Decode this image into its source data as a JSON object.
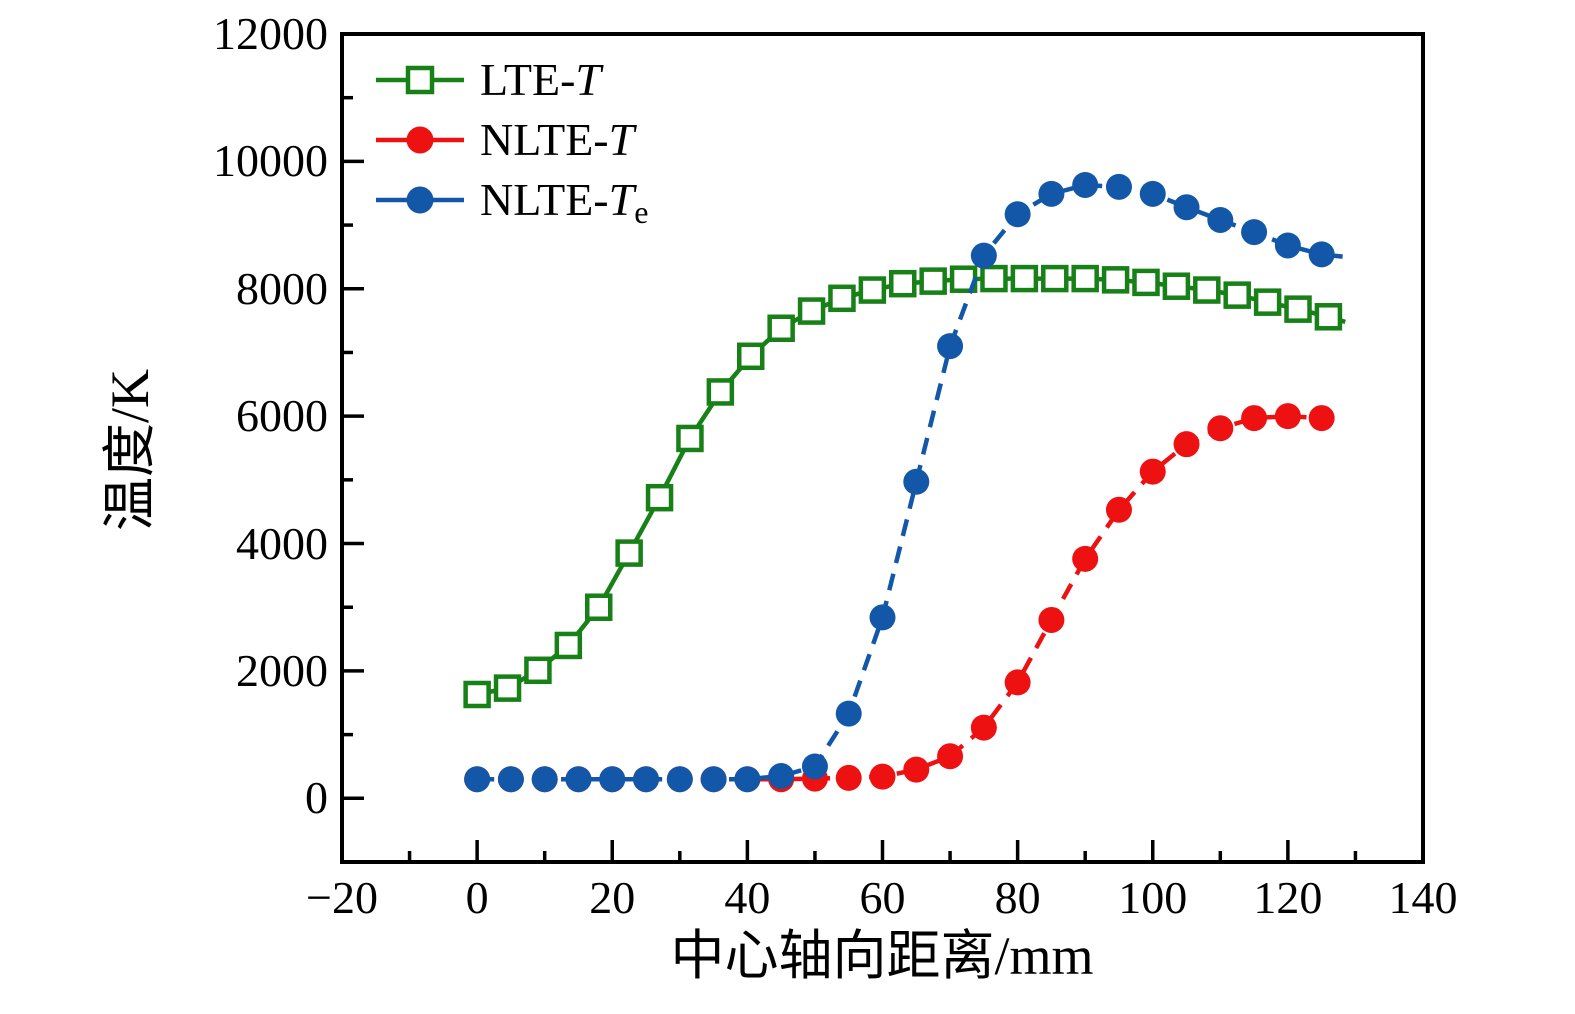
{
  "figure": {
    "background": "#ffffff"
  },
  "chart_data": {
    "type": "line",
    "title": "",
    "xlabel": "中心轴向距离/mm",
    "ylabel": "温度/K",
    "xlim": [
      -20,
      140
    ],
    "ylim": [
      -1000,
      12000
    ],
    "xticks": [
      -20,
      0,
      20,
      40,
      60,
      80,
      100,
      120,
      140
    ],
    "xticks_minor": [
      -10,
      10,
      30,
      50,
      70,
      90,
      110,
      130
    ],
    "yticks": [
      0,
      2000,
      4000,
      6000,
      8000,
      10000,
      12000
    ],
    "yticks_minor": [
      1000,
      3000,
      5000,
      7000,
      9000,
      11000
    ],
    "grid": false,
    "legend_position": "upper-left",
    "axis_color": "#000000",
    "series": [
      {
        "name": "LTE-T",
        "label_prefix": "LTE-",
        "label_symbol": "T",
        "label_sub": "",
        "color": "#178017",
        "marker": "open-square",
        "line_style": "solid",
        "x": [
          0,
          4.5,
          9,
          13.5,
          18,
          22.5,
          27,
          31.5,
          36,
          40.5,
          45,
          49.5,
          54,
          58.5,
          63,
          67.5,
          72,
          76.5,
          81,
          85.5,
          90,
          94.5,
          99,
          103.5,
          108,
          112.5,
          117,
          121.5,
          126
        ],
        "y": [
          1630,
          1730,
          2010,
          2400,
          3000,
          3850,
          4720,
          5650,
          6380,
          6940,
          7380,
          7650,
          7850,
          7980,
          8080,
          8120,
          8150,
          8160,
          8160,
          8160,
          8160,
          8140,
          8100,
          8040,
          7980,
          7900,
          7790,
          7680,
          7560
        ],
        "line_tail": {
          "x": 128.5,
          "y": 7480
        }
      },
      {
        "name": "NLTE-T",
        "label_prefix": "NLTE-",
        "label_symbol": "T",
        "label_sub": "",
        "color": "#ee1111",
        "marker": "filled-circle",
        "line_style": "dashed",
        "x": [
          0,
          5,
          10,
          15,
          20,
          25,
          30,
          35,
          40,
          45,
          50,
          55,
          60,
          65,
          70,
          75,
          80,
          85,
          90,
          95,
          100,
          105,
          110,
          115,
          120,
          125
        ],
        "y": [
          300,
          300,
          300,
          300,
          300,
          300,
          300,
          300,
          300,
          300,
          310,
          320,
          340,
          450,
          660,
          1110,
          1820,
          2800,
          3760,
          4530,
          5130,
          5560,
          5810,
          5970,
          6000,
          5970
        ],
        "line_tail": {
          "x": 128,
          "y": 5960
        }
      },
      {
        "name": "NLTE-Te",
        "label_prefix": "NLTE-",
        "label_symbol": "T",
        "label_sub": "e",
        "color": "#1358a8",
        "marker": "filled-circle",
        "line_style": "dashed",
        "x": [
          0,
          5,
          10,
          15,
          20,
          25,
          30,
          35,
          40,
          45,
          50,
          55,
          60,
          65,
          70,
          75,
          80,
          85,
          90,
          95,
          100,
          105,
          110,
          115,
          120,
          125
        ],
        "y": [
          300,
          300,
          300,
          300,
          300,
          300,
          300,
          300,
          300,
          350,
          500,
          1330,
          2840,
          4970,
          7100,
          8520,
          9170,
          9490,
          9630,
          9600,
          9490,
          9280,
          9080,
          8890,
          8680,
          8540
        ],
        "line_tail": {
          "x": 128.5,
          "y": 8500
        }
      }
    ]
  }
}
